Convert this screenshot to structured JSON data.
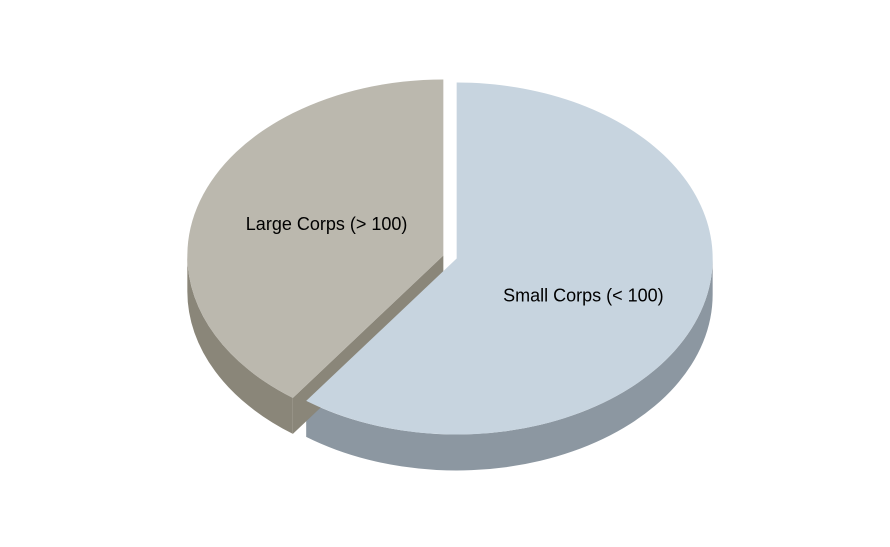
{
  "chart_data": {
    "type": "pie",
    "title": "",
    "style": "3d-exploded",
    "categories": [
      "Small Corps (< 100)",
      "Large Corps (> 100)"
    ],
    "values": [
      60,
      40
    ],
    "colors": {
      "Small Corps (< 100)": {
        "top": "#c7d4df",
        "side": "#8c97a1"
      },
      "Large Corps (> 100)": {
        "top": "#bbb8ae",
        "side": "#8a8679"
      }
    }
  }
}
